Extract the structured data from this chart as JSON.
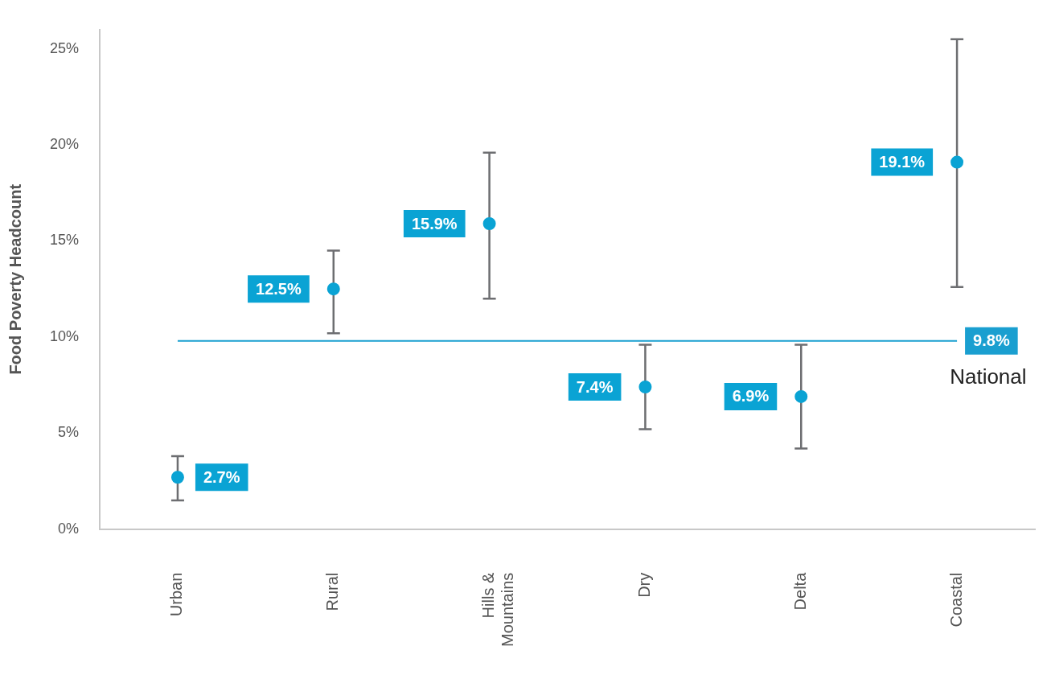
{
  "chart_data": {
    "type": "scatter",
    "ylabel": "Food Poverty Headcount",
    "categories": [
      "Urban",
      "Rural",
      "Hills & Mountains",
      "Dry",
      "Delta",
      "Coastal"
    ],
    "series": [
      {
        "color": "#0aa3d4",
        "values": [
          2.7,
          12.5,
          15.9,
          7.4,
          6.9,
          19.1
        ],
        "errors": [
          [
            1.5,
            3.8
          ],
          [
            10.2,
            14.5
          ],
          [
            12.0,
            19.6
          ],
          [
            5.2,
            9.6
          ],
          [
            4.2,
            9.6
          ],
          [
            12.6,
            25.5
          ]
        ],
        "value_labels": [
          "2.7%",
          "12.5%",
          "15.9%",
          "7.4%",
          "6.9%",
          "19.1%"
        ]
      }
    ],
    "ylim": [
      0,
      26
    ],
    "yticks": [
      {
        "value": 0,
        "label": "0%"
      },
      {
        "value": 5,
        "label": "5%"
      },
      {
        "value": 10,
        "label": "10%"
      },
      {
        "value": 15,
        "label": "15%"
      },
      {
        "value": 20,
        "label": "20%"
      },
      {
        "value": 25,
        "label": "25%"
      }
    ],
    "ref_lines": [
      {
        "axis": "y",
        "value": 9.8,
        "label": "9.8%",
        "color": "#1a9fd0"
      }
    ],
    "annotations": [
      "National"
    ],
    "grid": false,
    "legend": false,
    "marker": "circle"
  }
}
